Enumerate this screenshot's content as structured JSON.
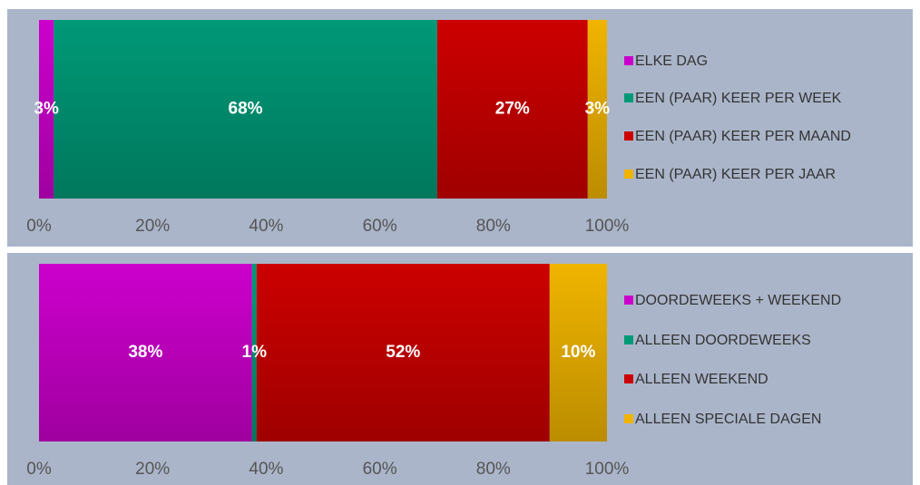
{
  "chart_data": [
    {
      "type": "stacked-bar-horizontal",
      "series": [
        {
          "name": "ELKE DAG",
          "color": "#cc00cc",
          "values": [
            2.6
          ],
          "value_labels": [
            "3%"
          ]
        },
        {
          "name": "EEN (PAAR) KEER PER WEEK",
          "color": "#009977",
          "values": [
            67.5
          ],
          "value_labels": [
            "68%"
          ]
        },
        {
          "name": "EEN (PAAR) KEER PER MAAND",
          "color": "#cc0000",
          "values": [
            26.5
          ],
          "value_labels": [
            "27%"
          ]
        },
        {
          "name": "EEN (PAAR) KEER PER JAAR",
          "color": "#f0b400",
          "values": [
            3.4
          ],
          "value_labels": [
            "3%"
          ]
        }
      ],
      "xlim": [
        0,
        100
      ],
      "xticks": [
        {
          "value": 0,
          "label": "0%"
        },
        {
          "value": 20,
          "label": "20%"
        },
        {
          "value": 40,
          "label": "40%"
        },
        {
          "value": 60,
          "label": "60%"
        },
        {
          "value": 80,
          "label": "80%"
        },
        {
          "value": 100,
          "label": "100%"
        }
      ],
      "legend": "right"
    },
    {
      "type": "stacked-bar-horizontal",
      "series": [
        {
          "name": "DOORDEWEEKS + WEEKEND",
          "color": "#cc00cc",
          "values": [
            37.5
          ],
          "value_labels": [
            "38%"
          ]
        },
        {
          "name": "ALLEEN DOORDEWEEKS",
          "color": "#009977",
          "values": [
            0.8
          ],
          "value_labels": [
            "1%"
          ]
        },
        {
          "name": "ALLEEN WEEKEND",
          "color": "#cc0000",
          "values": [
            51.6
          ],
          "value_labels": [
            "52%"
          ]
        },
        {
          "name": "ALLEEN SPECIALE DAGEN",
          "color": "#f0b400",
          "values": [
            10.1
          ],
          "value_labels": [
            "10%"
          ]
        }
      ],
      "xlim": [
        0,
        100
      ],
      "xticks": [
        {
          "value": 0,
          "label": "0%"
        },
        {
          "value": 20,
          "label": "20%"
        },
        {
          "value": 40,
          "label": "40%"
        },
        {
          "value": 60,
          "label": "60%"
        },
        {
          "value": 80,
          "label": "80%"
        },
        {
          "value": 100,
          "label": "100%"
        }
      ],
      "legend": "right"
    }
  ]
}
